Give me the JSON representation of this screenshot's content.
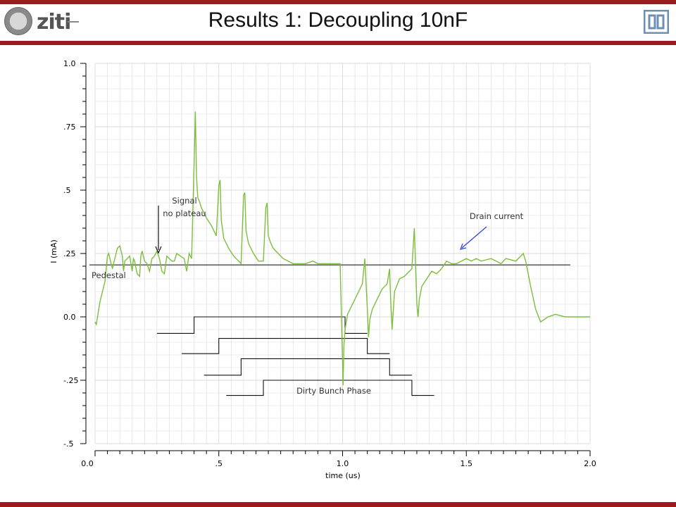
{
  "slide": {
    "title": "Results 1: Decoupling 10nF",
    "logo_left_text": "ziti"
  },
  "chart_data": {
    "type": "line",
    "title": "",
    "xlabel": "time (us)",
    "ylabel": "I (mA)",
    "xlim": [
      0.0,
      2.0
    ],
    "ylim": [
      -0.5,
      1.0
    ],
    "x_tick_labels": [
      "0.0",
      ".5",
      "1.0",
      "1.5",
      "2.0"
    ],
    "x_ticks": [
      0.0,
      0.5,
      1.0,
      1.5,
      2.0
    ],
    "y_tick_labels": [
      "1.0",
      ".75",
      ".5",
      ".25",
      "0.0",
      "-.25",
      "-.5"
    ],
    "y_ticks": [
      1.0,
      0.75,
      0.5,
      0.25,
      0.0,
      -0.25,
      -0.5
    ],
    "grid": true,
    "colors": {
      "signal": "#7dbe3c",
      "pedestal": "#222222",
      "phase": "#111111",
      "arrow_blue": "#2b3fd6",
      "grid": "#d9d9d9"
    },
    "series": [
      {
        "x": [
          0.0,
          0.005,
          0.02,
          0.04,
          0.05,
          0.055,
          0.07,
          0.09,
          0.1,
          0.11,
          0.115,
          0.12,
          0.14,
          0.15,
          0.155,
          0.16,
          0.17,
          0.18,
          0.185,
          0.19,
          0.2,
          0.21,
          0.22,
          0.23,
          0.24,
          0.25,
          0.26,
          0.27,
          0.28,
          0.29,
          0.3,
          0.31,
          0.32,
          0.33,
          0.36,
          0.37,
          0.38,
          0.39,
          0.4,
          0.405,
          0.41,
          0.415,
          0.42,
          0.43,
          0.45,
          0.47,
          0.49,
          0.5,
          0.505,
          0.51,
          0.52,
          0.54,
          0.56,
          0.58,
          0.59,
          0.6,
          0.605,
          0.61,
          0.62,
          0.64,
          0.66,
          0.68,
          0.69,
          0.695,
          0.7,
          0.71,
          0.72,
          0.74,
          0.76,
          0.78,
          0.8,
          0.82,
          0.85,
          0.88,
          0.9,
          0.95,
          0.99,
          1.0,
          1.002,
          1.005,
          1.01,
          1.02,
          1.04,
          1.06,
          1.08,
          1.09,
          1.1,
          1.105,
          1.11,
          1.12,
          1.14,
          1.16,
          1.18,
          1.19,
          1.195,
          1.2,
          1.21,
          1.23,
          1.25,
          1.27,
          1.28,
          1.29,
          1.3,
          1.305,
          1.31,
          1.32,
          1.34,
          1.36,
          1.38,
          1.4,
          1.42,
          1.44,
          1.46,
          1.48,
          1.5,
          1.52,
          1.54,
          1.56,
          1.6,
          1.62,
          1.64,
          1.66,
          1.7,
          1.72,
          1.73,
          1.74,
          1.75,
          1.76,
          1.78,
          1.8,
          1.83,
          1.86,
          1.9,
          1.95,
          2.0
        ],
        "y": [
          -0.02,
          -0.03,
          0.06,
          0.14,
          0.24,
          0.25,
          0.19,
          0.27,
          0.28,
          0.24,
          0.18,
          0.22,
          0.24,
          0.18,
          0.23,
          0.22,
          0.17,
          0.16,
          0.24,
          0.26,
          0.22,
          0.21,
          0.18,
          0.23,
          0.24,
          0.26,
          0.23,
          0.18,
          0.17,
          0.24,
          0.23,
          0.22,
          0.22,
          0.25,
          0.23,
          0.18,
          0.25,
          0.23,
          0.6,
          0.81,
          0.55,
          0.47,
          0.46,
          0.43,
          0.39,
          0.36,
          0.32,
          0.52,
          0.54,
          0.38,
          0.31,
          0.27,
          0.24,
          0.22,
          0.21,
          0.48,
          0.49,
          0.34,
          0.29,
          0.25,
          0.22,
          0.22,
          0.43,
          0.45,
          0.32,
          0.29,
          0.27,
          0.25,
          0.23,
          0.22,
          0.21,
          0.21,
          0.21,
          0.22,
          0.21,
          0.21,
          0.21,
          -0.18,
          -0.27,
          -0.12,
          -0.05,
          0.01,
          0.05,
          0.09,
          0.13,
          0.23,
          0.03,
          -0.08,
          -0.01,
          0.03,
          0.07,
          0.11,
          0.13,
          0.19,
          0.05,
          -0.05,
          0.1,
          0.15,
          0.16,
          0.18,
          0.19,
          0.35,
          0.05,
          0.0,
          0.07,
          0.12,
          0.15,
          0.18,
          0.17,
          0.19,
          0.22,
          0.21,
          0.21,
          0.22,
          0.23,
          0.22,
          0.23,
          0.22,
          0.23,
          0.22,
          0.21,
          0.23,
          0.22,
          0.24,
          0.25,
          0.22,
          0.17,
          0.12,
          0.03,
          -0.02,
          0.0,
          0.01,
          0.0,
          0.0,
          0.0
        ],
        "name": ""
      }
    ],
    "pedestal_level": 0.205,
    "pedestal_x_range": [
      0.0,
      1.92
    ],
    "phase_signals": [
      {
        "x": [
          0.25,
          0.4,
          0.4,
          1.01,
          1.01,
          1.1
        ],
        "levels": [
          -0.065,
          -0.065,
          0.0,
          0.0,
          -0.065,
          -0.065
        ]
      },
      {
        "x": [
          0.35,
          0.5,
          0.5,
          1.1,
          1.1,
          1.19
        ],
        "levels": [
          -0.145,
          -0.145,
          -0.085,
          -0.085,
          -0.145,
          -0.145
        ]
      },
      {
        "x": [
          0.44,
          0.59,
          0.59,
          1.19,
          1.19,
          1.28
        ],
        "levels": [
          -0.23,
          -0.23,
          -0.165,
          -0.165,
          -0.23,
          -0.23
        ]
      },
      {
        "x": [
          0.53,
          0.68,
          0.68,
          1.28,
          1.28,
          1.37
        ],
        "levels": [
          -0.31,
          -0.31,
          -0.25,
          -0.25,
          -0.31,
          -0.31
        ]
      }
    ],
    "annotations": {
      "signal_line1": "Signal",
      "signal_line2": "no plateau",
      "drain": "Drain current",
      "pedestal": "Pedestal",
      "dirty": "Dirty Bunch Phase"
    }
  }
}
